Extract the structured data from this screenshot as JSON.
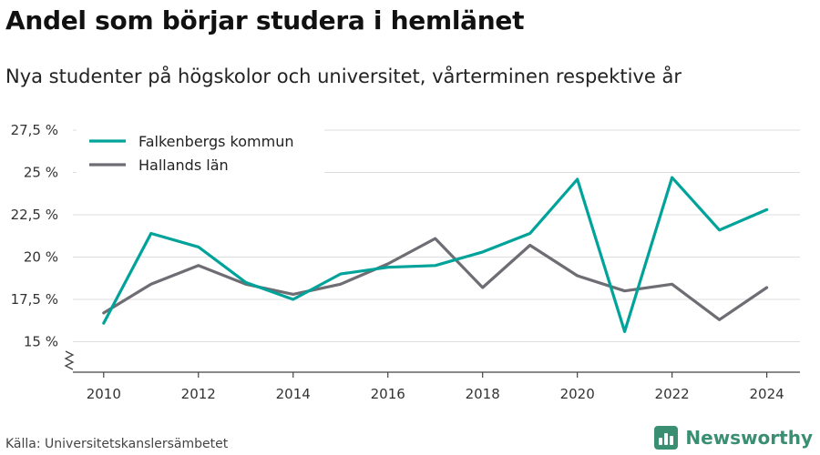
{
  "title": "Andel som börjar studera i hemlänet",
  "subtitle": "Nya studenter på högskolor och universitet, vårterminen respektive år",
  "source": "Källa: Universitetskanslersämbetet",
  "brand": {
    "name": "Newsworthy",
    "icon": "newsworthy-logo-icon",
    "color": "#3a8f72"
  },
  "chart_data": {
    "type": "line",
    "title": "Andel som börjar studera i hemlänet",
    "x": [
      2010,
      2011,
      2012,
      2013,
      2014,
      2015,
      2016,
      2017,
      2018,
      2019,
      2020,
      2021,
      2022,
      2023,
      2024
    ],
    "x_ticks": [
      2010,
      2012,
      2014,
      2016,
      2018,
      2020,
      2022,
      2024
    ],
    "x_tick_labels": [
      "2010",
      "2012",
      "2014",
      "2016",
      "2018",
      "2020",
      "2022",
      "2024"
    ],
    "y_ticks": [
      15,
      17.5,
      20,
      22.5,
      25,
      27.5
    ],
    "y_tick_labels": [
      "15 %",
      "17,5 %",
      "20 %",
      "22,5 %",
      "25 %",
      "27,5 %"
    ],
    "ylim": [
      13.2,
      28.2
    ],
    "axis_break": true,
    "grid": true,
    "legend_position": "top-left",
    "series": [
      {
        "name": "Falkenbergs kommun",
        "color": "#00a39a",
        "values": [
          16.1,
          21.4,
          20.6,
          18.5,
          17.5,
          19.0,
          19.4,
          19.5,
          20.3,
          21.4,
          24.6,
          15.6,
          24.7,
          21.6,
          22.8
        ]
      },
      {
        "name": "Hallands län",
        "color": "#6d6d73",
        "values": [
          16.7,
          18.4,
          19.5,
          18.4,
          17.8,
          18.4,
          19.6,
          21.1,
          18.2,
          20.7,
          18.9,
          18.0,
          18.4,
          16.3,
          18.2
        ]
      }
    ]
  }
}
